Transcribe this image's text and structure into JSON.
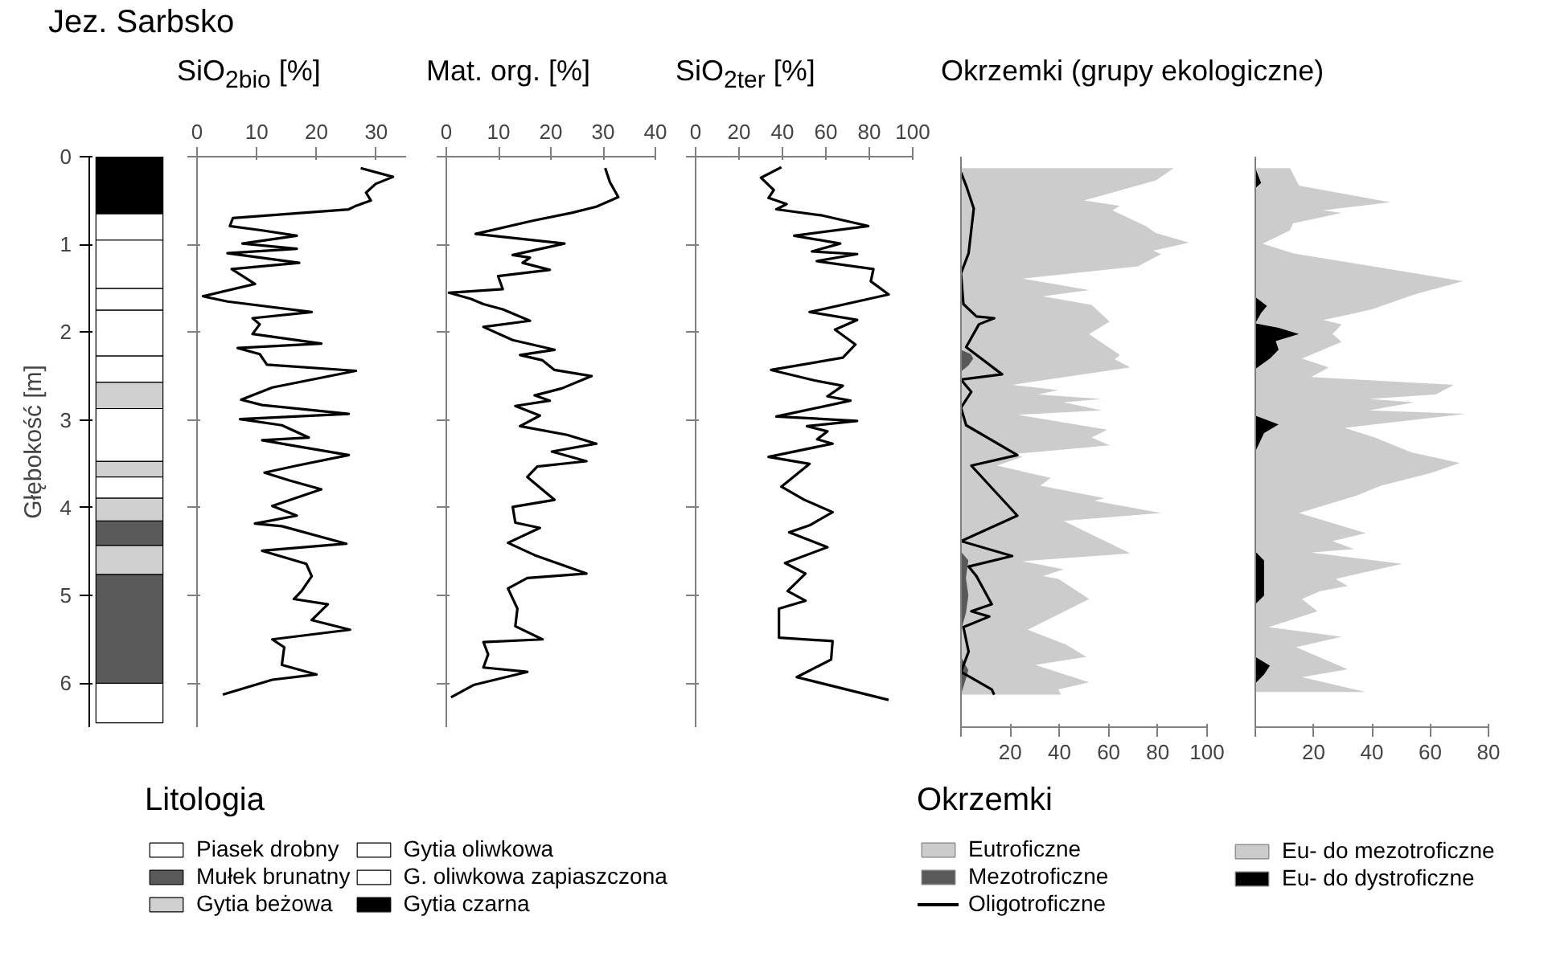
{
  "chart_data": [
    {
      "type": "bar",
      "title": "Jez. Sarbsko",
      "legend_title": "Litologia",
      "legend": "bottom",
      "ylabel": "Głębokość [m]",
      "categories": [
        null
      ],
      "ylim": [
        6.5,
        0
      ],
      "yticks": [
        0,
        1,
        2,
        3,
        4,
        5,
        6
      ],
      "tick_labels": "y",
      "series": [
        {
          "name": "Piasek drobny",
          "color": "#ffffff",
          "x": [
            null,
            null
          ],
          "base": [
            1.5,
            6.0
          ],
          "values": [
            0.25,
            0.45
          ]
        },
        {
          "name": "Mułek brunatny",
          "color": "#5a5a5a",
          "x": [
            null,
            null
          ],
          "base": [
            4.15,
            4.76
          ],
          "values": [
            0.28,
            1.24
          ]
        },
        {
          "name": "Gytia beżowa",
          "color": "#d0d0d0",
          "x": [
            null,
            null,
            null,
            null
          ],
          "base": [
            2.57,
            3.47,
            3.89,
            4.43
          ],
          "values": [
            0.3,
            0.18,
            0.26,
            0.33
          ]
        },
        {
          "name": "Gytia oliwkowa",
          "color": "#ffffff",
          "x": [
            null,
            null,
            null,
            null
          ],
          "base": [
            0.95,
            2.27,
            2.87,
            3.65
          ],
          "values": [
            0.55,
            0.3,
            0.6,
            0.24
          ]
        },
        {
          "name": "G. oliwkowa zapiaszczona",
          "color": "#ffffff",
          "x": [
            null,
            null
          ],
          "base": [
            0.65,
            1.75
          ],
          "values": [
            0.3,
            0.52
          ]
        },
        {
          "name": "Gytia czarna",
          "color": "#000000",
          "x": [
            null
          ],
          "base": [
            0
          ],
          "values": [
            0.65
          ]
        }
      ]
    },
    {
      "type": "line",
      "title": "SiO$_{2bio}$ [%]",
      "orientation": "horizontal",
      "xlim": [
        0,
        35
      ],
      "xticks": [
        0,
        10,
        20,
        30
      ],
      "ylim": [
        6.5,
        0
      ],
      "yticks": [
        0,
        1,
        2,
        3,
        4,
        5,
        6
      ],
      "tick_labels": "x",
      "series": [
        {
          "color": "#000000",
          "x": [
            0.13,
            0.23,
            0.31,
            0.41,
            0.5,
            0.56,
            0.6,
            0.7,
            0.79,
            0.84,
            0.9,
            0.99,
            1.05,
            1.1,
            1.21,
            1.28,
            1.45,
            1.59,
            1.65,
            1.77,
            1.84,
            1.91,
            2.02,
            2.13,
            2.18,
            2.25,
            2.37,
            2.44,
            2.63,
            2.77,
            2.83,
            2.93,
            2.99,
            3.06,
            3.2,
            3.23,
            3.29,
            3.4,
            3.52,
            3.6,
            3.69,
            3.79,
            3.98,
            4.09,
            4.18,
            4.21,
            4.41,
            4.49,
            4.64,
            4.78,
            4.95,
            5.04,
            5.1,
            5.28,
            5.39,
            5.5,
            5.59,
            5.79,
            5.9,
            5.96,
            6.13
          ],
          "values": [
            27.4,
            32.8,
            29.9,
            28.3,
            29.1,
            26.6,
            25.4,
            6,
            5.5,
            10.9,
            16.7,
            7.6,
            16.7,
            5.1,
            17.1,
            5.8,
            9.7,
            1,
            5.1,
            19.2,
            9.3,
            10.5,
            9.3,
            20.8,
            6.8,
            10.5,
            11.7,
            26.6,
            12.6,
            7.4,
            10.9,
            25.4,
            7.2,
            14.2,
            18.7,
            10.9,
            15.9,
            25.4,
            16.7,
            11.3,
            15.5,
            20.8,
            12.6,
            16.7,
            9.7,
            14.2,
            25,
            10.9,
            18.3,
            19.2,
            17.5,
            16.2,
            21.9,
            19.2,
            25.6,
            12.6,
            14.6,
            14.2,
            20,
            12.6,
            4.3
          ]
        }
      ]
    },
    {
      "type": "line",
      "title": "Mat. org. [%]",
      "orientation": "horizontal",
      "xlim": [
        0,
        40
      ],
      "xticks": [
        0,
        10,
        20,
        30,
        40
      ],
      "ylim": [
        6.5,
        0
      ],
      "yticks": [
        0,
        1,
        2,
        3,
        4,
        5,
        6
      ],
      "tick_labels": "x",
      "series": [
        {
          "color": "#000000",
          "x": [
            0.13,
            0.29,
            0.46,
            0.57,
            0.64,
            0.73,
            0.88,
            0.99,
            1.12,
            1.15,
            1.21,
            1.29,
            1.36,
            1.51,
            1.55,
            1.62,
            1.68,
            1.74,
            1.87,
            1.94,
            2.09,
            2.2,
            2.26,
            2.32,
            2.43,
            2.5,
            2.64,
            2.72,
            2.78,
            2.84,
            2.95,
            3.07,
            3.17,
            3.27,
            3.36,
            3.47,
            3.53,
            3.65,
            3.91,
            3.99,
            4.17,
            4.23,
            4.4,
            4.54,
            4.75,
            4.8,
            4.92,
            5.15,
            5.35,
            5.5,
            5.53,
            5.67,
            5.82,
            5.87,
            6.02,
            6.16
          ],
          "values": [
            30.4,
            31.3,
            32.9,
            28.7,
            24,
            16.5,
            5.6,
            22.6,
            12.7,
            16,
            14.6,
            19.8,
            9.9,
            10.8,
            0.5,
            4.7,
            7.1,
            10.8,
            16,
            7.1,
            12.7,
            20.7,
            14.1,
            18.4,
            20.7,
            27.8,
            22.1,
            16.9,
            19.8,
            13.2,
            17.9,
            14.1,
            23.1,
            28.7,
            20.2,
            26.8,
            17.4,
            15.5,
            20.7,
            12.7,
            13.2,
            17.9,
            11.8,
            16.9,
            26.8,
            15.5,
            11.8,
            13.6,
            13.2,
            18.4,
            7.1,
            8,
            7.1,
            15.5,
            5.2,
            0.9
          ]
        }
      ]
    },
    {
      "type": "line",
      "title": "SiO$_{2ter}$ [%]",
      "orientation": "horizontal",
      "xlim": [
        0,
        100
      ],
      "xticks": [
        0,
        20,
        40,
        60,
        80,
        100
      ],
      "ylim": [
        6.5,
        0
      ],
      "yticks": [
        0,
        1,
        2,
        3,
        4,
        5,
        6
      ],
      "tick_labels": "x",
      "series": [
        {
          "color": "#000000",
          "x": [
            0.12,
            0.24,
            0.38,
            0.47,
            0.54,
            0.6,
            0.67,
            0.79,
            0.9,
            0.99,
            1.08,
            1.11,
            1.19,
            1.28,
            1.42,
            1.57,
            1.77,
            1.86,
            1.97,
            2.14,
            2.29,
            2.43,
            2.55,
            2.61,
            2.73,
            2.78,
            2.96,
            3.01,
            3.07,
            3.13,
            3.22,
            3.27,
            3.42,
            3.5,
            3.76,
            3.91,
            4.05,
            4.2,
            4.28,
            4.45,
            4.63,
            4.75,
            4.95,
            5.06,
            5.15,
            5.48,
            5.52,
            5.73,
            5.93,
            6.19
          ],
          "values": [
            39.5,
            30.1,
            36,
            33.6,
            41.9,
            37.2,
            58.4,
            79.5,
            45.4,
            66.6,
            53.6,
            74.4,
            55.8,
            81.9,
            80.7,
            88.9,
            52.5,
            74.4,
            64.2,
            73.6,
            67.8,
            34.8,
            54.8,
            67.8,
            60.7,
            71.3,
            37.2,
            74.4,
            51.3,
            60.7,
            56,
            63.1,
            33.6,
            52.5,
            39.5,
            50.1,
            63.1,
            52.5,
            43.1,
            60.7,
            41.2,
            50.6,
            42.4,
            50.6,
            38.4,
            38.4,
            63.1,
            62.4,
            46.6,
            88.9
          ]
        }
      ]
    },
    {
      "type": "area",
      "title": "Okrzemki (grupy ekologiczne)",
      "legend_title": "Okrzemki",
      "legend": "bottom",
      "orientation": "horizontal",
      "xlim": [
        0,
        100
      ],
      "xticks": [
        {
          "value": 0,
          "label": null
        },
        20,
        40,
        60,
        80,
        100
      ],
      "ylim": [
        6.5,
        0
      ],
      "tick_labels": "x",
      "series": [
        {
          "name": "Eutroficzne",
          "type": "area",
          "color": "#cccccc",
          "x": [
            0.13,
            0.27,
            0.5,
            0.56,
            0.61,
            0.79,
            0.87,
            0.98,
            1.07,
            1.11,
            1.25,
            1.39,
            1.52,
            1.59,
            1.69,
            1.88,
            2.02,
            2.14,
            2.26,
            2.31,
            2.4,
            2.6,
            2.66,
            2.71,
            2.76,
            2.8,
            2.89,
            2.94,
            3.11,
            3.2,
            3.29,
            3.39,
            3.42,
            3.52,
            3.66,
            3.75,
            3.89,
            3.92,
            4.06,
            4.15,
            4.52,
            4.61,
            4.7,
            4.78,
            4.81,
            5.04,
            5.39,
            5.56,
            5.7,
            5.79,
            5.99,
            6.07,
            6.13
          ],
          "values": [
            86.5,
            79.2,
            50,
            64.6,
            61.5,
            75,
            79.2,
            92.7,
            78.1,
            81.3,
            71.9,
            25,
            52.1,
            33.3,
            53.1,
            60.4,
            52.1,
            58.3,
            64.6,
            62.5,
            68.8,
            20.8,
            39.6,
            31.3,
            57.3,
            41.7,
            57.3,
            22.9,
            59.4,
            53.1,
            60.4,
            20.8,
            25,
            14.6,
            36.5,
            32.3,
            58.3,
            54.2,
            81.3,
            41.7,
            68.8,
            25,
            41.7,
            33.3,
            39.6,
            52.1,
            27.1,
            42.7,
            51,
            30.2,
            52.1,
            39.6,
            40.6
          ]
        },
        {
          "name": "Mezotroficzne",
          "type": "area",
          "color": "#595959",
          "x": [
            0.13,
            2.2,
            2.25,
            2.3,
            2.38,
            2.45,
            4.5,
            4.6,
            4.8,
            5.0,
            5.2,
            5.4,
            5.7,
            5.85,
            5.95,
            6.13
          ],
          "values": [
            0,
            0,
            4,
            5,
            3,
            0,
            0,
            3,
            2,
            3,
            2,
            0,
            0,
            3,
            2,
            0
          ]
        },
        {
          "name": "Oligotroficzne",
          "type": "line",
          "color": "#000000",
          "x": [
            0.18,
            0.33,
            0.59,
            1.1,
            1.33,
            1.68,
            1.82,
            1.84,
            1.91,
            2.17,
            2.48,
            2.54,
            2.68,
            2.86,
            3.06,
            3.4,
            3.52,
            4.09,
            4.38,
            4.55,
            4.67,
            4.78,
            5.1,
            5.18,
            5.24,
            5.36,
            5.64,
            5.87,
            6.07,
            6.13
          ],
          "values": [
            0,
            2.1,
            5.2,
            3.1,
            0,
            1,
            6.3,
            13.5,
            7.3,
            2.1,
            16.7,
            0,
            4.2,
            0,
            2.1,
            22.9,
            4.2,
            22.9,
            0,
            20.8,
            3.1,
            6.3,
            12.5,
            4.2,
            11.5,
            1,
            3.1,
            0,
            12.5,
            13.5
          ]
        }
      ]
    },
    {
      "type": "area",
      "legend": "bottom",
      "orientation": "horizontal",
      "xlim": [
        0,
        80
      ],
      "xticks": [
        {
          "value": 0,
          "label": null
        },
        20,
        40,
        60,
        80
      ],
      "ylim": [
        6.5,
        0
      ],
      "tick_labels": "x",
      "series": [
        {
          "name": "Eu- do mezotroficzne",
          "color": "#cccccc",
          "x": [
            0.13,
            0.33,
            0.52,
            0.61,
            0.64,
            0.76,
            0.84,
            0.99,
            1.1,
            1.42,
            1.57,
            1.74,
            1.79,
            1.86,
            1.91,
            2.02,
            2.11,
            2.3,
            2.4,
            2.51,
            2.6,
            2.71,
            2.74,
            2.76,
            2.8,
            2.89,
            2.93,
            3.09,
            3.2,
            3.37,
            3.49,
            3.6,
            3.75,
            3.86,
            4.06,
            4.29,
            4.38,
            4.47,
            4.51,
            4.64,
            4.81,
            4.89,
            4.95,
            5.04,
            5.18,
            5.36,
            5.47,
            5.59,
            5.84,
            5.93,
            6.1
          ],
          "values": [
            11.9,
            15,
            46.3,
            23.3,
            29.6,
            12.9,
            11.9,
            2.5,
            12.9,
            71.3,
            54.6,
            40,
            33.3,
            23.3,
            29.6,
            26.5,
            29.6,
            16,
            25.2,
            19.2,
            68.1,
            61.9,
            48.3,
            39,
            54.6,
            39,
            72.3,
            30.6,
            41,
            53.5,
            70.2,
            60.6,
            43.1,
            34.8,
            15,
            37.9,
            26.5,
            33.8,
            19.2,
            50.4,
            27.5,
            31.7,
            22.3,
            16,
            21.3,
            4.6,
            29.6,
            14,
            31.7,
            16,
            37.9
          ]
        },
        {
          "name": "Eu- do dystroficzne",
          "color": "#000000",
          "x": [
            0.13,
            0.3,
            0.36,
            1.6,
            1.7,
            1.78,
            1.9,
            1.95,
            2.02,
            2.1,
            2.2,
            2.3,
            2.42,
            2.95,
            3.05,
            3.15,
            3.36,
            4.5,
            4.6,
            4.8,
            5.0,
            5.1,
            5.7,
            5.8,
            5.9,
            6.0,
            6.13
          ],
          "values": [
            0,
            2,
            0,
            0,
            4,
            2,
            0,
            8,
            15,
            7,
            8,
            5,
            0,
            0,
            8,
            3,
            0,
            0,
            3,
            3,
            3,
            0,
            0,
            5,
            3,
            0,
            0
          ]
        }
      ]
    }
  ]
}
